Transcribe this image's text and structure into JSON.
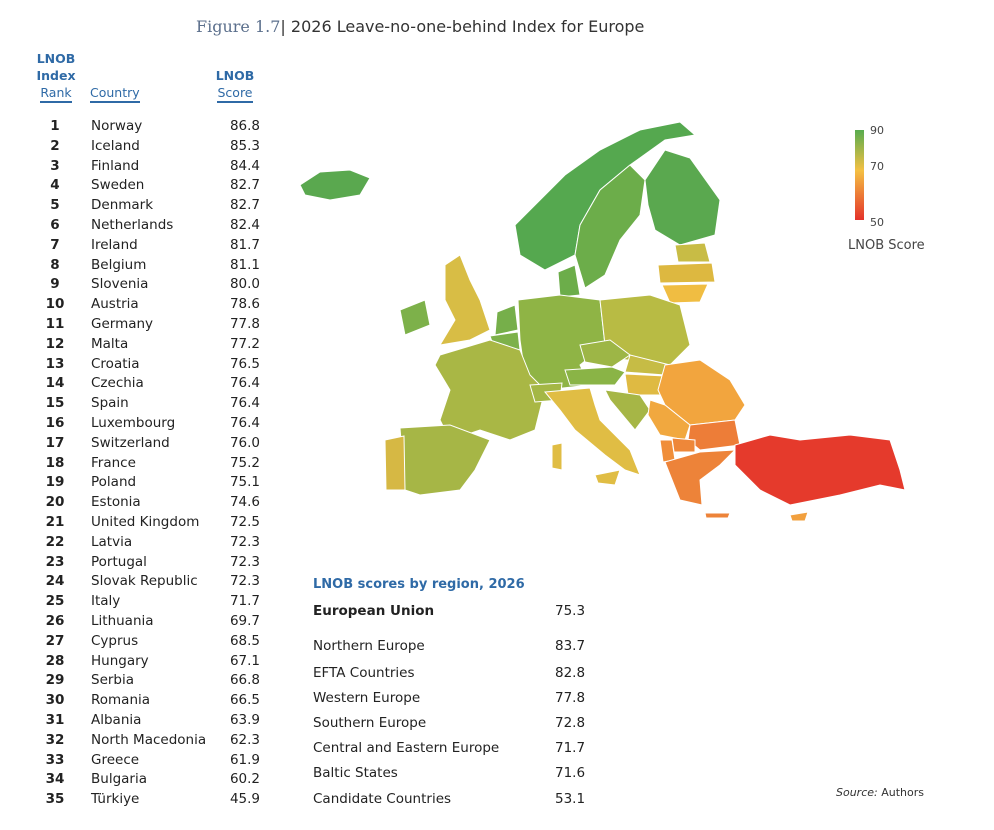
{
  "figure_label": "Figure 1.7",
  "title": "2026 Leave-no-one-behind Index for Europe",
  "table": {
    "headers": {
      "rank": [
        "LNOB",
        "Index",
        "Rank"
      ],
      "country": "Country",
      "score": [
        "LNOB",
        "Score"
      ]
    },
    "rows": [
      {
        "rank": "1",
        "country": "Norway",
        "score": "86.8"
      },
      {
        "rank": "2",
        "country": "Iceland",
        "score": "85.3"
      },
      {
        "rank": "3",
        "country": "Finland",
        "score": "84.4"
      },
      {
        "rank": "4",
        "country": "Sweden",
        "score": "82.7"
      },
      {
        "rank": "5",
        "country": "Denmark",
        "score": "82.7"
      },
      {
        "rank": "6",
        "country": "Netherlands",
        "score": "82.4"
      },
      {
        "rank": "7",
        "country": "Ireland",
        "score": "81.7"
      },
      {
        "rank": "8",
        "country": "Belgium",
        "score": "81.1"
      },
      {
        "rank": "9",
        "country": "Slovenia",
        "score": "80.0"
      },
      {
        "rank": "10",
        "country": "Austria",
        "score": "78.6"
      },
      {
        "rank": "11",
        "country": "Germany",
        "score": "77.8"
      },
      {
        "rank": "12",
        "country": "Malta",
        "score": "77.2"
      },
      {
        "rank": "13",
        "country": "Croatia",
        "score": "76.5"
      },
      {
        "rank": "14",
        "country": "Czechia",
        "score": "76.4"
      },
      {
        "rank": "15",
        "country": "Spain",
        "score": "76.4"
      },
      {
        "rank": "16",
        "country": "Luxembourg",
        "score": "76.4"
      },
      {
        "rank": "17",
        "country": "Switzerland",
        "score": "76.0"
      },
      {
        "rank": "18",
        "country": "France",
        "score": "75.2"
      },
      {
        "rank": "19",
        "country": "Poland",
        "score": "75.1"
      },
      {
        "rank": "20",
        "country": "Estonia",
        "score": "74.6"
      },
      {
        "rank": "21",
        "country": "United Kingdom",
        "score": "72.5"
      },
      {
        "rank": "22",
        "country": "Latvia",
        "score": "72.3"
      },
      {
        "rank": "23",
        "country": "Portugal",
        "score": "72.3"
      },
      {
        "rank": "24",
        "country": "Slovak Republic",
        "score": "72.3"
      },
      {
        "rank": "25",
        "country": "Italy",
        "score": "71.7"
      },
      {
        "rank": "26",
        "country": "Lithuania",
        "score": "69.7"
      },
      {
        "rank": "27",
        "country": "Cyprus",
        "score": "68.5"
      },
      {
        "rank": "28",
        "country": "Hungary",
        "score": "67.1"
      },
      {
        "rank": "29",
        "country": "Serbia",
        "score": "66.8"
      },
      {
        "rank": "30",
        "country": "Romania",
        "score": "66.5"
      },
      {
        "rank": "31",
        "country": "Albania",
        "score": "63.9"
      },
      {
        "rank": "32",
        "country": "North Macedonia",
        "score": "62.3"
      },
      {
        "rank": "33",
        "country": "Greece",
        "score": "61.9"
      },
      {
        "rank": "34",
        "country": "Bulgaria",
        "score": "60.2"
      },
      {
        "rank": "35",
        "country": "Türkiye",
        "score": "45.9"
      }
    ]
  },
  "legend": {
    "title": "LNOB Score",
    "max": "90",
    "mid": "70",
    "min": "50",
    "colors": [
      "#58ac4f",
      "#f4c043",
      "#e4322a"
    ]
  },
  "regions": {
    "title": "LNOB scores by region, 2026",
    "rows": [
      {
        "name": "European Union",
        "score": "75.3"
      },
      {
        "name": "Northern Europe",
        "score": "83.7"
      },
      {
        "name": "EFTA Countries",
        "score": "82.8"
      },
      {
        "name": "Western Europe",
        "score": "77.8"
      },
      {
        "name": "Southern Europe",
        "score": "72.8"
      },
      {
        "name": "Central and Eastern Europe",
        "score": "71.7"
      },
      {
        "name": "Baltic States",
        "score": "71.6"
      },
      {
        "name": "Candidate Countries",
        "score": "53.1"
      }
    ]
  },
  "source": {
    "label": "Source:",
    "text": "Authors"
  },
  "chart_data": {
    "type": "choropleth-map",
    "title": "2026 Leave-no-one-behind Index for Europe",
    "color_scale": {
      "min": 50,
      "mid": 70,
      "max": 90,
      "label": "LNOB Score"
    }
  }
}
